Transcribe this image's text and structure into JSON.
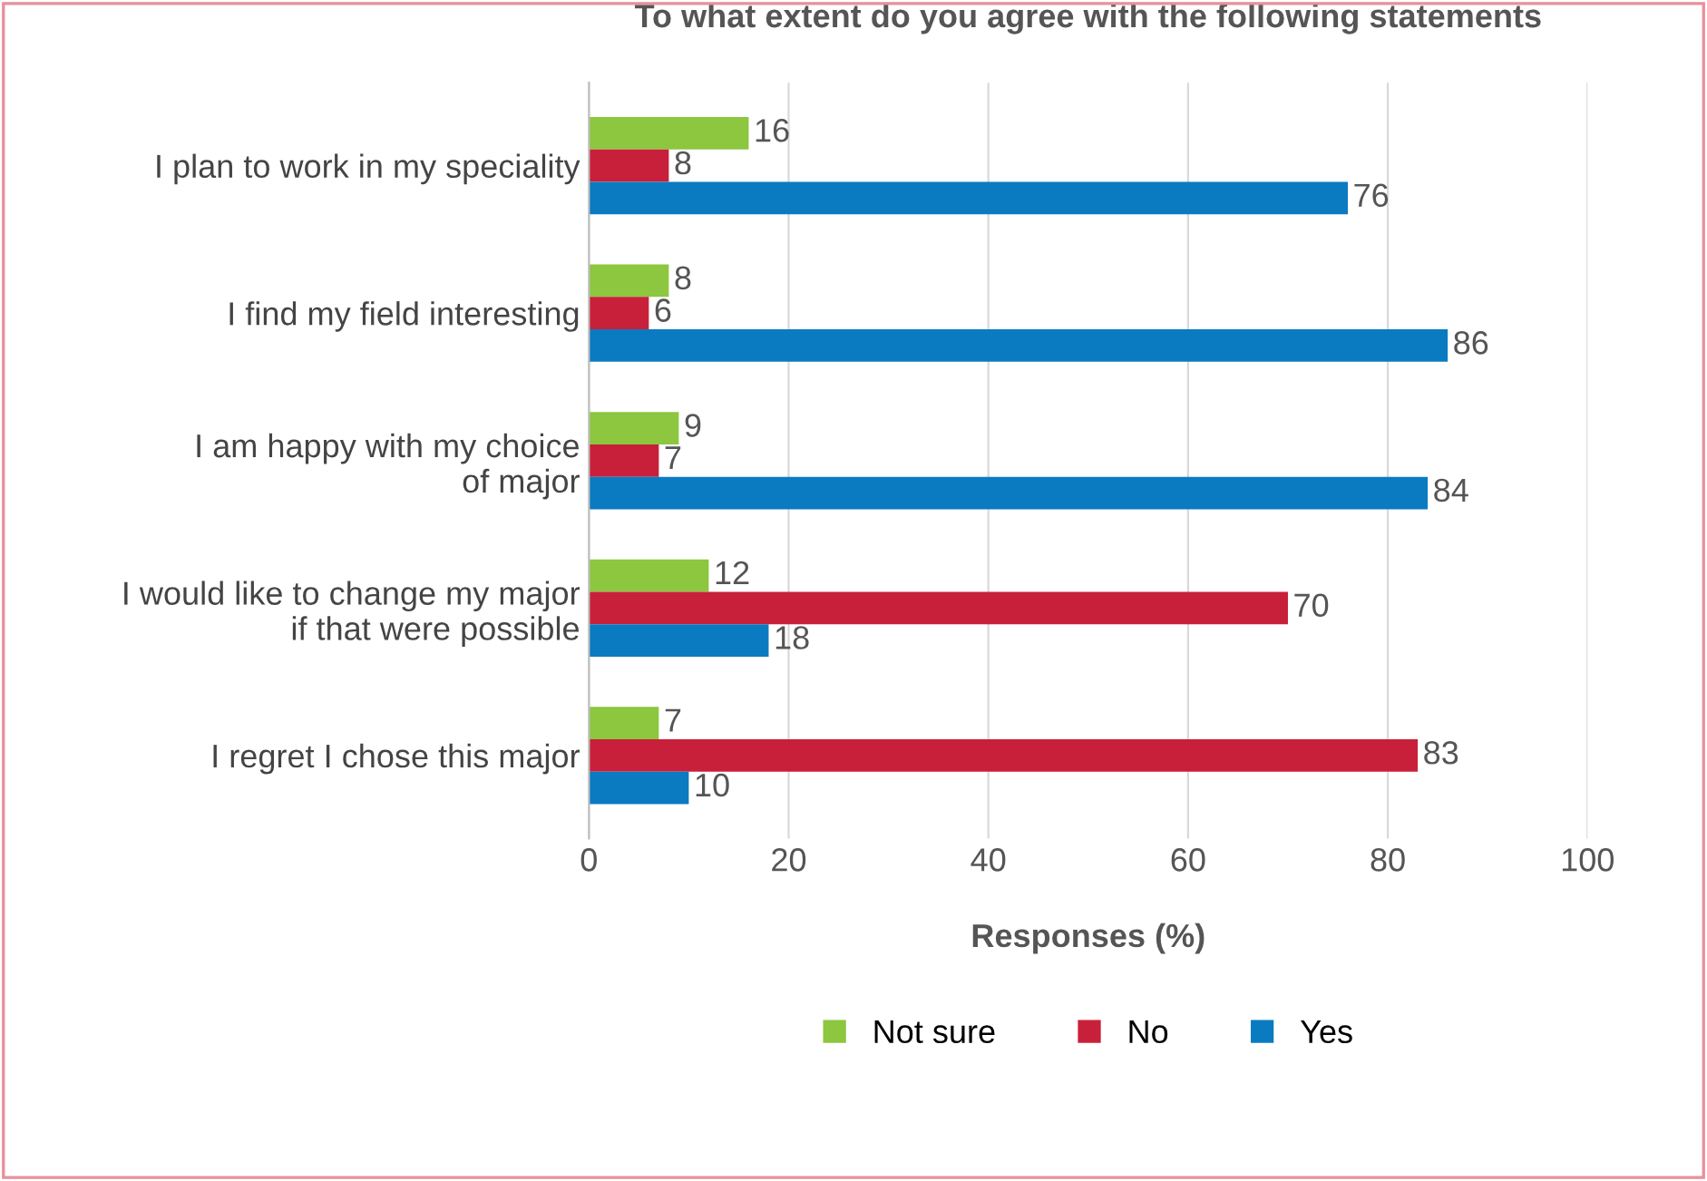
{
  "chart_data": {
    "type": "bar",
    "orientation": "horizontal",
    "title": "To what extent do you agree with the following statements",
    "xlabel": "Responses (%)",
    "categories": [
      "I plan to work in my speciality",
      "I find my field interesting",
      "I am happy with my choice\nof major",
      "I would like to change my major\nif that were possible",
      "I regret I chose this major"
    ],
    "series": [
      {
        "name": "Not sure",
        "color": "#8dc63f",
        "values": [
          16,
          8,
          9,
          12,
          7
        ]
      },
      {
        "name": "No",
        "color": "#c8203a",
        "values": [
          8,
          6,
          7,
          70,
          83
        ]
      },
      {
        "name": "Yes",
        "color": "#0a7bc1",
        "values": [
          76,
          86,
          84,
          18,
          10
        ]
      }
    ],
    "xlim": [
      0,
      100
    ],
    "xticks": [
      0,
      20,
      40,
      60,
      80,
      100
    ],
    "grid": "x",
    "legend": "bottom",
    "data_labels": true
  }
}
